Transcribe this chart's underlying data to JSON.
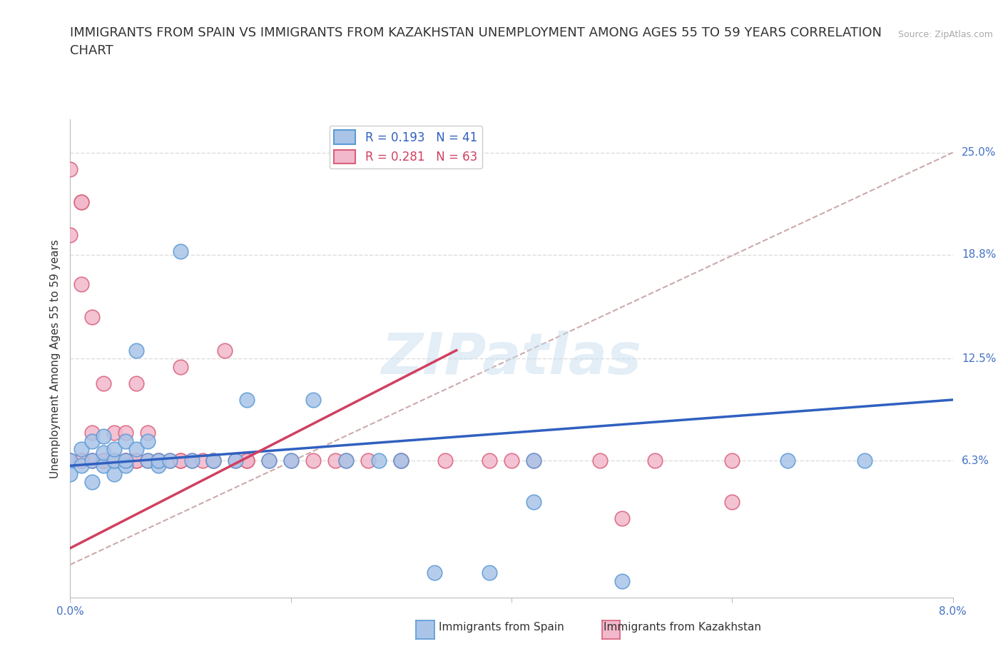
{
  "title": "IMMIGRANTS FROM SPAIN VS IMMIGRANTS FROM KAZAKHSTAN UNEMPLOYMENT AMONG AGES 55 TO 59 YEARS CORRELATION\nCHART",
  "source_text": "Source: ZipAtlas.com",
  "ylabel": "Unemployment Among Ages 55 to 59 years",
  "xlim": [
    0.0,
    0.08
  ],
  "ylim": [
    -0.02,
    0.27
  ],
  "xticks": [
    0.0,
    0.02,
    0.04,
    0.06,
    0.08
  ],
  "xtick_labels": [
    "0.0%",
    "",
    "",
    "",
    "8.0%"
  ],
  "ytick_vals_right": [
    0.063,
    0.125,
    0.188,
    0.25
  ],
  "ytick_labels_right": [
    "6.3%",
    "12.5%",
    "18.8%",
    "25.0%"
  ],
  "spain_color": "#aac4e8",
  "spain_edge_color": "#5b9bd5",
  "kaz_color": "#f2b8cc",
  "kaz_edge_color": "#d9607a",
  "spain_line_color": "#3060c0",
  "kaz_line_color": "#d04060",
  "diagonal_color": "#ccaaaa",
  "spain_R": 0.193,
  "spain_N": 41,
  "kaz_R": 0.281,
  "kaz_N": 63,
  "spain_data_x": [
    0.0,
    0.0,
    0.001,
    0.001,
    0.002,
    0.002,
    0.002,
    0.003,
    0.003,
    0.003,
    0.004,
    0.004,
    0.004,
    0.005,
    0.005,
    0.005,
    0.006,
    0.006,
    0.007,
    0.007,
    0.008,
    0.008,
    0.009,
    0.01,
    0.011,
    0.013,
    0.015,
    0.016,
    0.018,
    0.02,
    0.022,
    0.025,
    0.028,
    0.03,
    0.033,
    0.038,
    0.042,
    0.042,
    0.05,
    0.065,
    0.072
  ],
  "spain_data_y": [
    0.063,
    0.055,
    0.06,
    0.07,
    0.05,
    0.063,
    0.075,
    0.06,
    0.068,
    0.078,
    0.055,
    0.063,
    0.07,
    0.06,
    0.063,
    0.075,
    0.07,
    0.13,
    0.063,
    0.075,
    0.06,
    0.063,
    0.063,
    0.19,
    0.063,
    0.063,
    0.063,
    0.1,
    0.063,
    0.063,
    0.1,
    0.063,
    0.063,
    0.063,
    -0.005,
    -0.005,
    0.063,
    0.038,
    -0.01,
    0.063,
    0.063
  ],
  "kaz_data_x": [
    0.0,
    0.0,
    0.0,
    0.0,
    0.001,
    0.001,
    0.001,
    0.001,
    0.001,
    0.002,
    0.002,
    0.002,
    0.002,
    0.003,
    0.003,
    0.003,
    0.003,
    0.003,
    0.004,
    0.004,
    0.004,
    0.004,
    0.005,
    0.005,
    0.005,
    0.005,
    0.006,
    0.006,
    0.006,
    0.007,
    0.007,
    0.008,
    0.008,
    0.009,
    0.01,
    0.01,
    0.011,
    0.012,
    0.013,
    0.014,
    0.015,
    0.016,
    0.018,
    0.02,
    0.022,
    0.024,
    0.027,
    0.03,
    0.034,
    0.038,
    0.042,
    0.048,
    0.053,
    0.06,
    0.01,
    0.013,
    0.016,
    0.025,
    0.03,
    0.04,
    0.05,
    0.06,
    0.001
  ],
  "kaz_data_y": [
    0.2,
    0.24,
    0.063,
    0.063,
    0.17,
    0.22,
    0.22,
    0.063,
    0.063,
    0.15,
    0.063,
    0.063,
    0.08,
    0.063,
    0.11,
    0.063,
    0.063,
    0.063,
    0.063,
    0.08,
    0.063,
    0.063,
    0.063,
    0.08,
    0.063,
    0.063,
    0.063,
    0.063,
    0.11,
    0.08,
    0.063,
    0.063,
    0.063,
    0.063,
    0.063,
    0.12,
    0.063,
    0.063,
    0.063,
    0.13,
    0.063,
    0.063,
    0.063,
    0.063,
    0.063,
    0.063,
    0.063,
    0.063,
    0.063,
    0.063,
    0.063,
    0.063,
    0.063,
    0.038,
    0.063,
    0.063,
    0.063,
    0.063,
    0.063,
    0.063,
    0.028,
    0.063,
    0.063
  ],
  "background_color": "#ffffff",
  "grid_color": "#dddddd",
  "title_fontsize": 13,
  "axis_label_fontsize": 11,
  "tick_fontsize": 11,
  "legend_fontsize": 11,
  "watermark_text": "ZIPatlas",
  "watermark_color": "#c8dff0",
  "watermark_alpha": 0.5
}
